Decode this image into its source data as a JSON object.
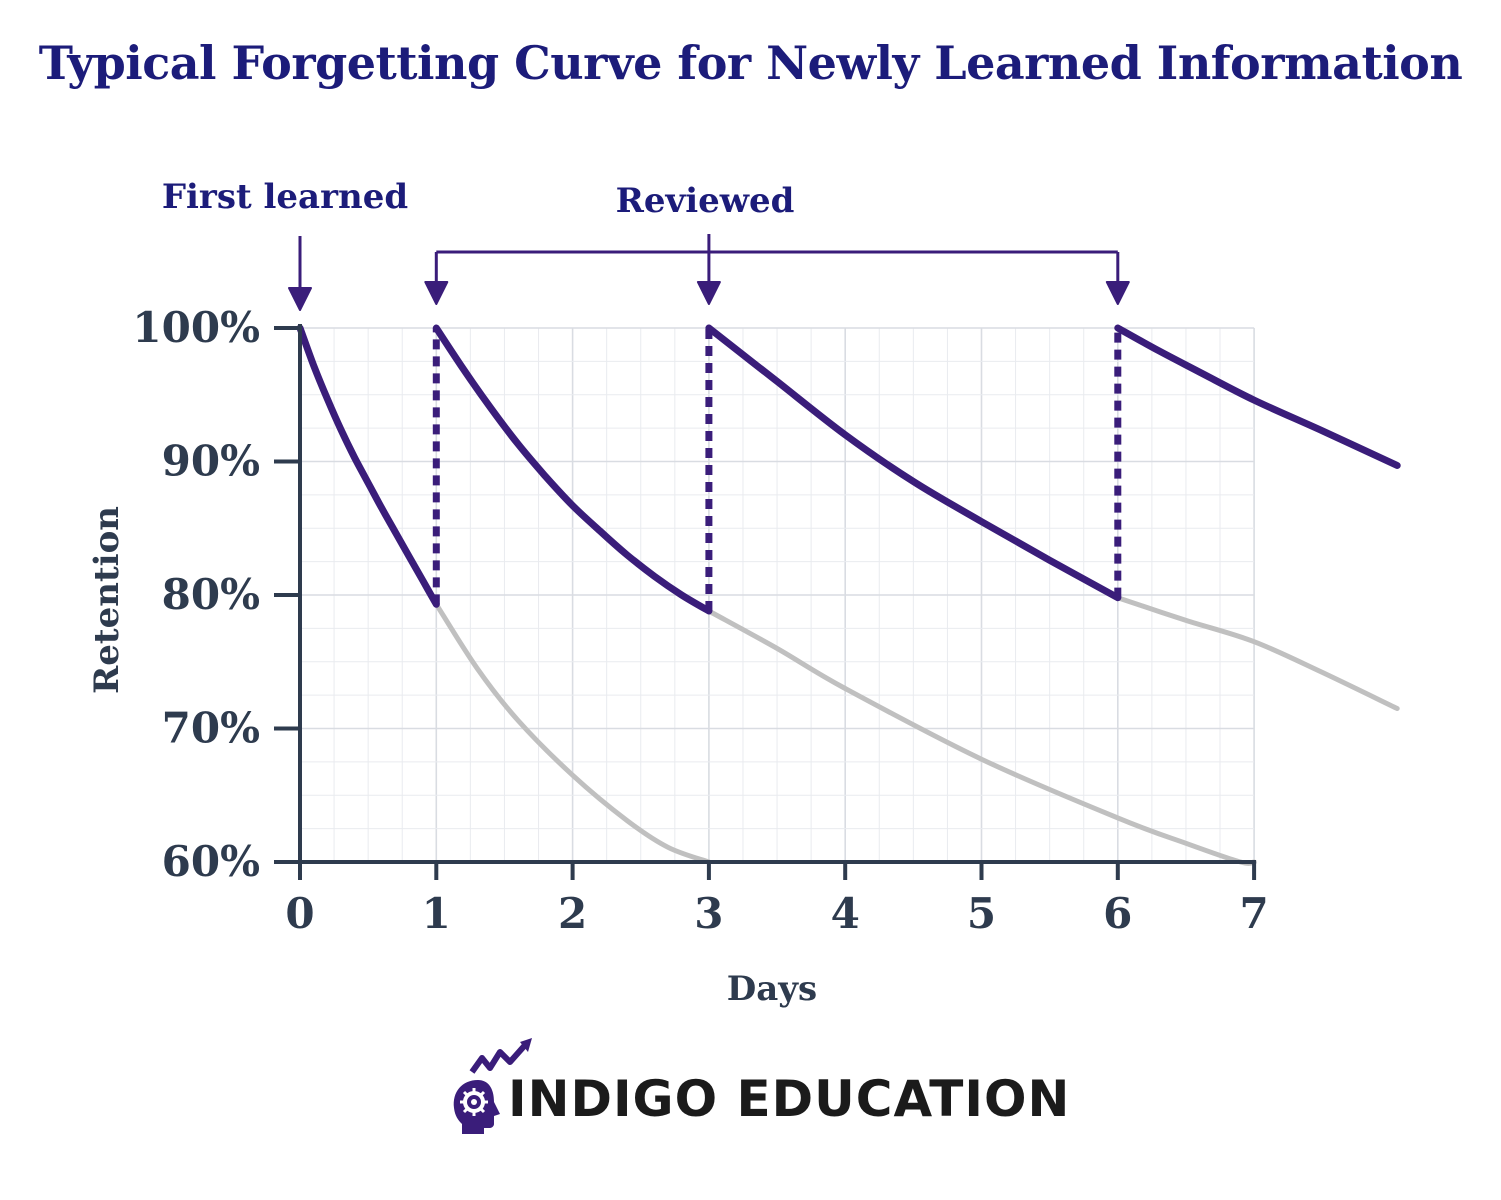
{
  "chart_data": {
    "type": "line",
    "title": "Typical Forgetting Curve for Newly Learned Information",
    "xlabel": "Days",
    "ylabel": "Retention",
    "x_ticks": [
      0,
      1,
      2,
      3,
      4,
      5,
      6,
      7
    ],
    "y_ticks": [
      "60%",
      "70%",
      "80%",
      "90%",
      "100%"
    ],
    "y_tick_values": [
      60,
      70,
      80,
      90,
      100
    ],
    "xlim": [
      0,
      8.05
    ],
    "ylim": [
      60,
      100
    ],
    "grid": true,
    "annotations": {
      "first_learned": "First learned",
      "reviewed": "Reviewed"
    },
    "review_days": [
      1,
      3,
      6
    ],
    "series": [
      {
        "style": "retention",
        "color": "#3a1d7a",
        "segments": [
          [
            [
              0,
              100
            ],
            [
              0.1,
              97.2
            ],
            [
              0.2,
              94.7
            ],
            [
              0.3,
              92.4
            ],
            [
              0.4,
              90.3
            ],
            [
              0.5,
              88.4
            ],
            [
              0.6,
              86.5
            ],
            [
              0.7,
              84.7
            ],
            [
              0.8,
              82.9
            ],
            [
              0.9,
              81.1
            ],
            [
              1,
              79.3
            ]
          ],
          [
            [
              1,
              100
            ],
            [
              1.2,
              96.9
            ],
            [
              1.4,
              94.0
            ],
            [
              1.6,
              91.3
            ],
            [
              1.8,
              88.9
            ],
            [
              2,
              86.7
            ],
            [
              2.2,
              84.8
            ],
            [
              2.4,
              83.0
            ],
            [
              2.6,
              81.4
            ],
            [
              2.8,
              80.0
            ],
            [
              3,
              78.8
            ]
          ],
          [
            [
              3,
              100
            ],
            [
              3.25,
              98.0
            ],
            [
              3.5,
              96.0
            ],
            [
              4,
              92.0
            ],
            [
              4.5,
              88.5
            ],
            [
              5,
              85.5
            ],
            [
              5.5,
              82.6
            ],
            [
              6,
              79.8
            ]
          ],
          [
            [
              6,
              100
            ],
            [
              6.3,
              98.3
            ],
            [
              6.6,
              96.7
            ],
            [
              7,
              94.6
            ],
            [
              7.5,
              92.3
            ],
            [
              8.05,
              89.7
            ]
          ]
        ]
      },
      {
        "style": "without-review",
        "color": "#c0c0c0",
        "segments": [
          [
            [
              1,
              79.3
            ],
            [
              1.3,
              74.5
            ],
            [
              1.6,
              70.6
            ],
            [
              2,
              66.5
            ],
            [
              2.4,
              63.1
            ],
            [
              2.7,
              61.1
            ],
            [
              3,
              60.0
            ]
          ],
          [
            [
              3,
              78.8
            ],
            [
              3.5,
              76.0
            ],
            [
              4,
              73.0
            ],
            [
              5,
              67.7
            ],
            [
              6,
              63.3
            ],
            [
              6.5,
              61.4
            ],
            [
              6.9,
              60.0
            ],
            [
              7,
              60.0
            ]
          ],
          [
            [
              6,
              79.8
            ],
            [
              6.5,
              78.1
            ],
            [
              7,
              76.5
            ],
            [
              7.5,
              74.2
            ],
            [
              8.05,
              71.5
            ]
          ]
        ]
      }
    ]
  },
  "brand": {
    "name": "INDIGO EDUCATION",
    "icon": "head-gear-chart-icon"
  }
}
